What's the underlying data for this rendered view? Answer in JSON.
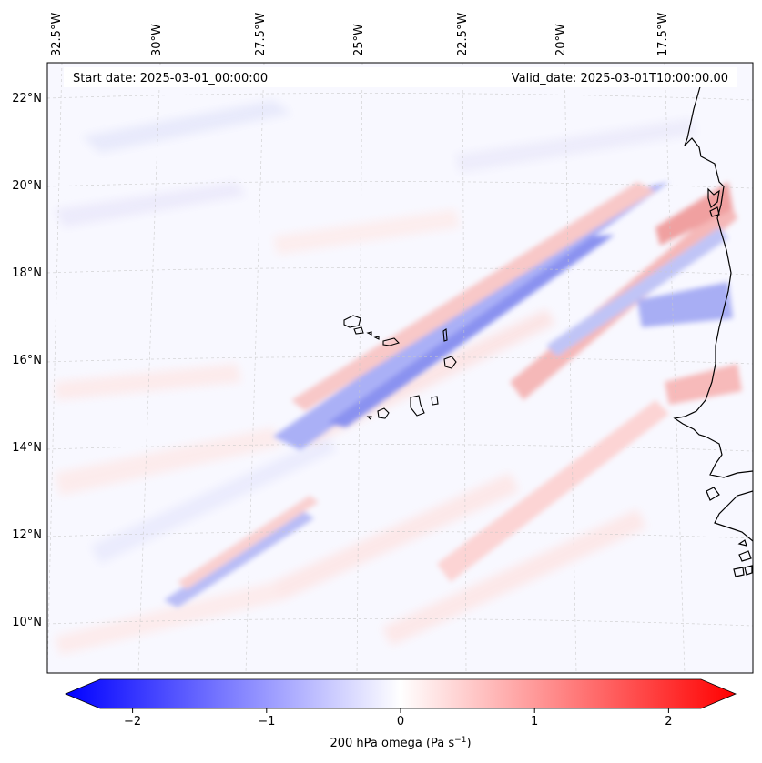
{
  "map": {
    "variable": "200 hPa omega",
    "units_text": "(Pa s",
    "units_exp": "−1",
    "units_close": ")",
    "start_date_label": "Start date: 2025-03-01_00:00:00",
    "valid_date_label": "Valid_date: 2025-03-01T10:00:00.00",
    "lon_labels": [
      "32.5°W",
      "30°W",
      "27.5°W",
      "25°W",
      "22.5°W",
      "20°W",
      "17.5°W"
    ],
    "lat_labels": [
      "22°N",
      "20°N",
      "18°N",
      "16°N",
      "14°N",
      "12°N",
      "10°N"
    ],
    "colors": {
      "neg_max": "#0000ff",
      "zero": "#ffffff",
      "pos_max": "#ff0000",
      "coast": "#000000"
    }
  },
  "colorbar": {
    "ticks": [
      "−2",
      "−1",
      "0",
      "1",
      "2"
    ],
    "tick_values": [
      -2,
      -1,
      0,
      1,
      2
    ],
    "min": -2.5,
    "max": 2.5,
    "extend": "both"
  }
}
